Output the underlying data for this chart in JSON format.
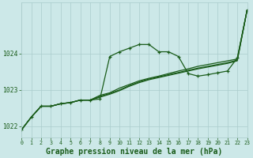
{
  "background_color": "#cce8e8",
  "grid_color": "#aacccc",
  "line_color": "#1a5c1a",
  "xlabel": "Graphe pression niveau de la mer (hPa)",
  "xlabel_fontsize": 7,
  "xlim": [
    0,
    23
  ],
  "ylim": [
    1021.7,
    1025.4
  ],
  "yticks": [
    1022,
    1023,
    1024
  ],
  "xticks": [
    0,
    1,
    2,
    3,
    4,
    5,
    6,
    7,
    8,
    9,
    10,
    11,
    12,
    13,
    14,
    15,
    16,
    17,
    18,
    19,
    20,
    21,
    22,
    23
  ],
  "series_main": [
    1021.9,
    1022.25,
    1022.55,
    1022.55,
    1022.62,
    1022.65,
    1022.72,
    1022.72,
    1022.75,
    1023.92,
    1024.05,
    1024.15,
    1024.25,
    1024.25,
    1024.05,
    1024.05,
    1023.92,
    1023.45,
    1023.38,
    1023.42,
    1023.47,
    1023.52,
    1023.88,
    1025.2
  ],
  "series_b": [
    1021.9,
    1022.25,
    1022.55,
    1022.55,
    1022.62,
    1022.65,
    1022.72,
    1022.72,
    1022.85,
    1022.92,
    1023.05,
    1023.15,
    1023.25,
    1023.32,
    1023.38,
    1023.45,
    1023.52,
    1023.58,
    1023.65,
    1023.7,
    1023.75,
    1023.8,
    1023.85,
    1025.2
  ],
  "series_c": [
    1021.9,
    1022.25,
    1022.55,
    1022.55,
    1022.62,
    1022.65,
    1022.72,
    1022.72,
    1022.82,
    1022.9,
    1023.0,
    1023.12,
    1023.22,
    1023.3,
    1023.36,
    1023.42,
    1023.48,
    1023.54,
    1023.6,
    1023.65,
    1023.7,
    1023.75,
    1023.82,
    1025.2
  ],
  "series_d": [
    1021.9,
    1022.25,
    1022.55,
    1022.55,
    1022.62,
    1022.65,
    1022.72,
    1022.72,
    1022.8,
    1022.88,
    1022.98,
    1023.1,
    1023.2,
    1023.28,
    1023.34,
    1023.4,
    1023.46,
    1023.52,
    1023.58,
    1023.63,
    1023.68,
    1023.73,
    1023.8,
    1025.2
  ]
}
